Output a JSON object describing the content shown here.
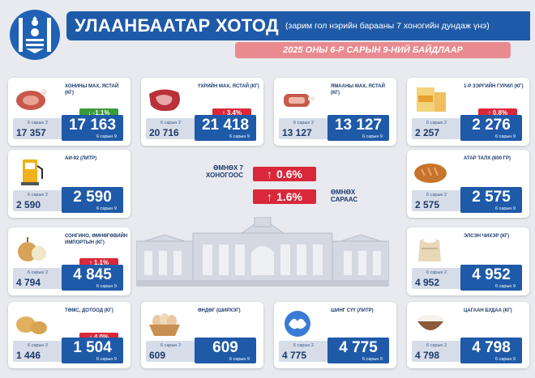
{
  "header": {
    "title": "УЛААНБААТАР ХОТОД",
    "subtitle": "(зарим гол нэрийн барааны 7 хоногийн дундаж үнэ)",
    "date": "2025 ОНЫ 6-Р САРЫН 9-НИЙ БАЙДЛААР"
  },
  "summary": {
    "week_label": "ӨМНӨХ 7 ХОНОГООС",
    "week_change": "0.6%",
    "month_label": "ӨМНӨХ САРААС",
    "month_change": "1.6%"
  },
  "prev_label": "6 сарын 2",
  "cur_label": "6 сарын 9",
  "products": [
    {
      "name": "ХОНИНЫ МАХ, ЯСТАЙ (КГ)",
      "icon": "mutton-icon",
      "prev": "17 357",
      "cur": "17 163",
      "change": "-1.1%",
      "dir": "down"
    },
    {
      "name": "ҮХРИЙН МАХ, ЯСТАЙ (КГ)",
      "icon": "beef-icon",
      "prev": "20 716",
      "cur": "21 418",
      "change": "3.4%",
      "dir": "up"
    },
    {
      "name": "ЯМААНЫ МАХ, ЯСТАЙ (КГ)",
      "icon": "goat-meat-icon",
      "prev": "13 127",
      "cur": "13 127",
      "change": "",
      "dir": "none"
    },
    {
      "name": "1-Р ЗЭРГИЙН ГУРИЛ (КГ)",
      "icon": "flour-bag-icon",
      "prev": "2 257",
      "cur": "2 276",
      "change": "0.8%",
      "dir": "up"
    },
    {
      "name": "АИ-92 (ЛИТР)",
      "icon": "fuel-pump-icon",
      "prev": "2 590",
      "cur": "2 590",
      "change": "",
      "dir": "none"
    },
    {
      "name": "АТАР ТАЛХ (600 ГР)",
      "icon": "bread-icon",
      "prev": "2 575",
      "cur": "2 575",
      "change": "",
      "dir": "none"
    },
    {
      "name": "СОНГИНО, ӨМНӨГӨВИЙН ИМПОРТЫН (КГ)",
      "icon": "onion-icon",
      "prev": "4 794",
      "cur": "4 845",
      "change": "1.1%",
      "dir": "up"
    },
    {
      "name": "ЭЛСЭН ЧИХЭР (КГ)",
      "icon": "sugar-sack-icon",
      "prev": "4 952",
      "cur": "4 952",
      "change": "",
      "dir": "none"
    },
    {
      "name": "ТӨМС, ДОТООД (КГ)",
      "icon": "potato-icon",
      "prev": "1 446",
      "cur": "1 504",
      "change": "4.0%",
      "dir": "up"
    },
    {
      "name": "ӨНДӨГ (ШИРХЭГ)",
      "icon": "egg-basket-icon",
      "prev": "609",
      "cur": "609",
      "change": "",
      "dir": "none"
    },
    {
      "name": "ШИНГ СҮҮ (ЛИТР)",
      "icon": "milk-splash-icon",
      "prev": "4 775",
      "cur": "4 775",
      "change": "",
      "dir": "none"
    },
    {
      "name": "ЦАГААН БУДАА (КГ)",
      "icon": "rice-bowl-icon",
      "prev": "4 798",
      "cur": "4 798",
      "change": "",
      "dir": "none"
    }
  ],
  "colors": {
    "primary": "#1f5aa8",
    "increase": "#d8283a",
    "decrease": "#3a9a3a",
    "accent": "#e88a8f"
  }
}
